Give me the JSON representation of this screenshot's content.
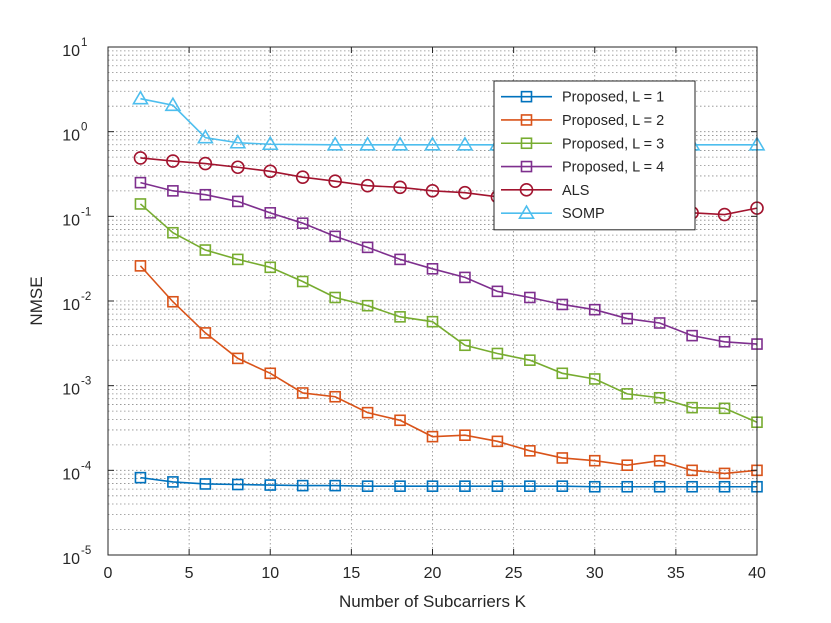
{
  "chart_data": {
    "type": "line",
    "title": "",
    "xlabel": "Number of Subcarriers K",
    "ylabel": "NMSE",
    "xlim": [
      0,
      40
    ],
    "ylim": [
      1e-05,
      10
    ],
    "yscale": "log",
    "grid": true,
    "legend_position": "top-right",
    "x_ticks": [
      0,
      5,
      10,
      15,
      20,
      25,
      30,
      35,
      40
    ],
    "x_tick_labels": [
      "0",
      "5",
      "10",
      "15",
      "20",
      "25",
      "30",
      "35",
      "40"
    ],
    "y_ticks": [
      1e-05,
      0.0001,
      0.001,
      0.01,
      0.1,
      1,
      10
    ],
    "y_tick_labels": [
      {
        "base": "10",
        "exp": "-5"
      },
      {
        "base": "10",
        "exp": "-4"
      },
      {
        "base": "10",
        "exp": "-3"
      },
      {
        "base": "10",
        "exp": "-2"
      },
      {
        "base": "10",
        "exp": "-1"
      },
      {
        "base": "10",
        "exp": "0"
      },
      {
        "base": "10",
        "exp": "1"
      }
    ],
    "x": [
      2,
      4,
      6,
      8,
      10,
      12,
      14,
      16,
      18,
      20,
      22,
      24,
      26,
      28,
      30,
      32,
      34,
      36,
      38,
      40
    ],
    "series": [
      {
        "name": "Proposed, L = 1",
        "color": "#0072BD",
        "marker": "square",
        "values": [
          8.2e-05,
          7.3e-05,
          6.9e-05,
          6.8e-05,
          6.7e-05,
          6.6e-05,
          6.6e-05,
          6.5e-05,
          6.5e-05,
          6.5e-05,
          6.5e-05,
          6.5e-05,
          6.5e-05,
          6.5e-05,
          6.4e-05,
          6.4e-05,
          6.4e-05,
          6.4e-05,
          6.4e-05,
          6.4e-05
        ]
      },
      {
        "name": "Proposed, L = 2",
        "color": "#D95319",
        "marker": "square",
        "values": [
          0.026,
          0.0098,
          0.0042,
          0.0021,
          0.0014,
          0.00082,
          0.00074,
          0.00048,
          0.00039,
          0.00025,
          0.00026,
          0.00022,
          0.00017,
          0.00014,
          0.00013,
          0.000115,
          0.00013,
          0.0001,
          9.2e-05,
          0.0001
        ]
      },
      {
        "name": "Proposed, L = 3",
        "color": "#77AC30",
        "marker": "square",
        "values": [
          0.14,
          0.064,
          0.04,
          0.031,
          0.025,
          0.017,
          0.011,
          0.0088,
          0.0065,
          0.0057,
          0.003,
          0.0024,
          0.002,
          0.0014,
          0.0012,
          0.0008,
          0.00072,
          0.00055,
          0.00054,
          0.00037
        ]
      },
      {
        "name": "Proposed, L = 4",
        "color": "#7E2F8E",
        "marker": "square",
        "values": [
          0.25,
          0.2,
          0.18,
          0.15,
          0.11,
          0.083,
          0.058,
          0.043,
          0.031,
          0.024,
          0.019,
          0.013,
          0.011,
          0.0091,
          0.0079,
          0.0062,
          0.0055,
          0.0039,
          0.0033,
          0.0031
        ]
      },
      {
        "name": "ALS",
        "color": "#A2142F",
        "marker": "circle",
        "values": [
          0.49,
          0.45,
          0.42,
          0.38,
          0.34,
          0.29,
          0.26,
          0.23,
          0.22,
          0.2,
          0.19,
          0.17,
          0.15,
          0.14,
          0.13,
          0.12,
          0.115,
          0.11,
          0.105,
          0.125
        ]
      },
      {
        "name": "SOMP",
        "color": "#4DBEEE",
        "marker": "triangle",
        "x": [
          2,
          4,
          6,
          8,
          10,
          14,
          16,
          18,
          20,
          22,
          24,
          30,
          34,
          36,
          40
        ],
        "values": [
          2.45,
          2.05,
          0.85,
          0.74,
          0.71,
          0.7,
          0.7,
          0.7,
          0.7,
          0.7,
          0.7,
          0.7,
          0.7,
          0.7,
          0.7
        ]
      }
    ]
  }
}
